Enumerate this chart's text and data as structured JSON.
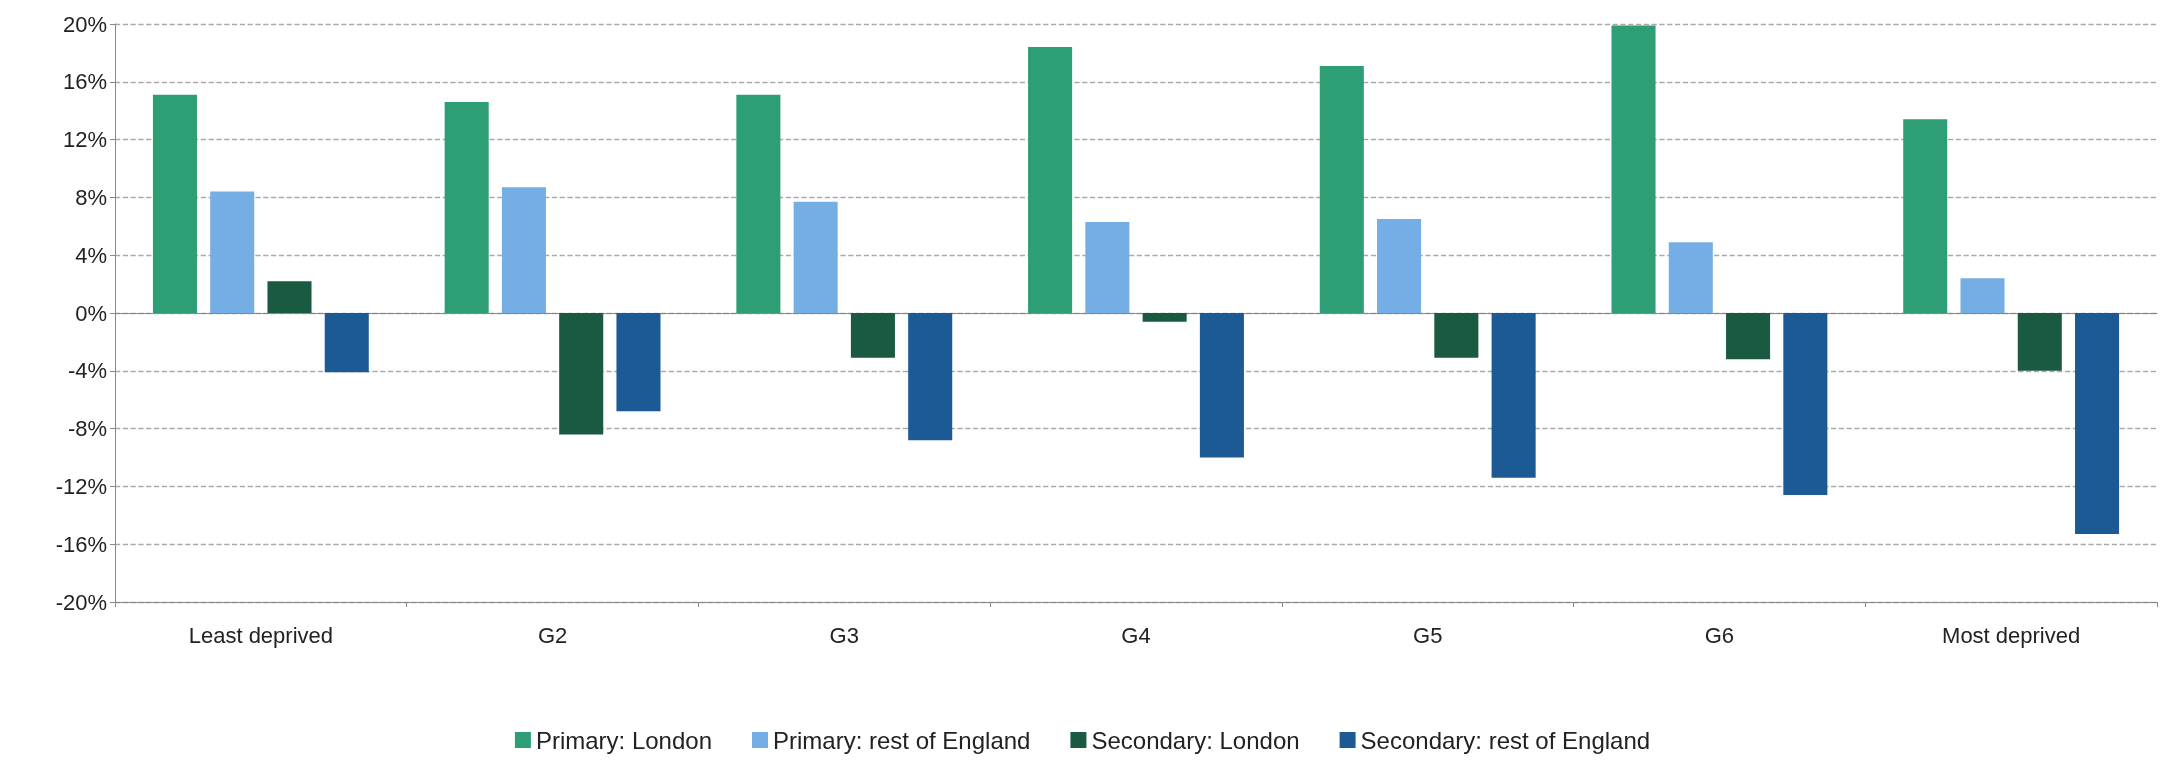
{
  "chart_data": {
    "type": "bar",
    "categories": [
      "Least deprived",
      "G2",
      "G3",
      "G4",
      "G5",
      "G6",
      "Most deprived"
    ],
    "series": [
      {
        "name": "Primary: London",
        "color": "#2e9e74",
        "values": [
          15.1,
          14.6,
          15.1,
          18.4,
          17.1,
          19.9,
          13.4
        ]
      },
      {
        "name": "Primary: rest of England",
        "color": "#74aee4",
        "values": [
          8.4,
          8.7,
          7.7,
          6.3,
          6.5,
          4.9,
          2.4
        ]
      },
      {
        "name": "Secondary: London",
        "color": "#1a5a40",
        "values": [
          2.2,
          -8.4,
          -3.1,
          -0.6,
          -3.1,
          -3.2,
          -4.0
        ]
      },
      {
        "name": "Secondary: rest of England",
        "color": "#1c5a96",
        "values": [
          -4.1,
          -6.8,
          -8.8,
          -10.0,
          -11.4,
          -12.6,
          -15.3
        ]
      }
    ],
    "ylim": [
      -20,
      20
    ],
    "yticks": [
      {
        "value": -20,
        "label": "-20%"
      },
      {
        "value": -16,
        "label": "-16%"
      },
      {
        "value": -12,
        "label": "-12%"
      },
      {
        "value": -8,
        "label": "-8%"
      },
      {
        "value": -4,
        "label": "-4%"
      },
      {
        "value": 0,
        "label": "0%"
      },
      {
        "value": 4,
        "label": "4%"
      },
      {
        "value": 8,
        "label": "8%"
      },
      {
        "value": 12,
        "label": "12%"
      },
      {
        "value": 16,
        "label": "16%"
      },
      {
        "value": 20,
        "label": "20%"
      }
    ],
    "grid": "y",
    "legend": "bottom"
  }
}
